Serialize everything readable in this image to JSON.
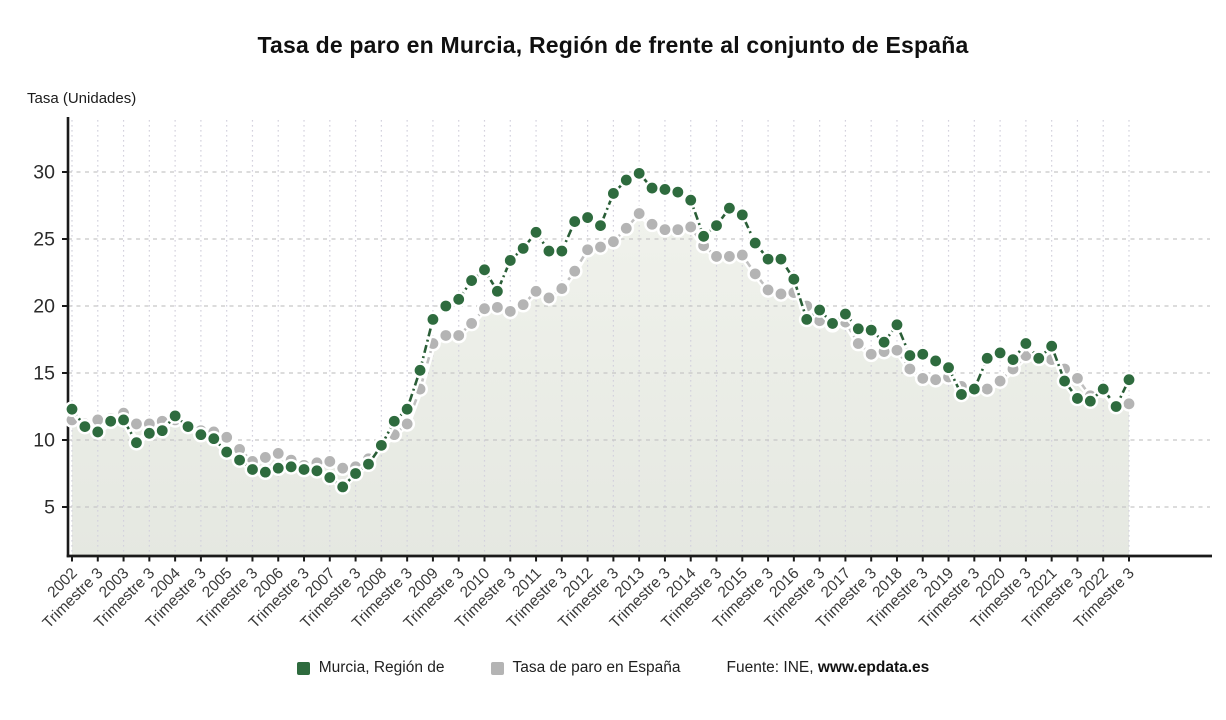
{
  "page": {
    "title": "Tasa de paro en Murcia, Región de frente al conjunto de España"
  },
  "chart_data": {
    "type": "line",
    "title": "Tasa de paro en Murcia, Región de frente al conjunto de España",
    "ylabel": "Tasa (Unidades)",
    "xlabel": "",
    "grid": true,
    "legend_position": "bottom",
    "ylim": [
      0,
      33.9
    ],
    "y_ticks": [
      5,
      10,
      15,
      20,
      25,
      30
    ],
    "x_tick_step": 2,
    "x_tick_labels": [
      "2002",
      "Trimestre 3",
      "2003",
      "Trimestre 3",
      "2004",
      "Trimestre 3",
      "2005",
      "Trimestre 3",
      "2006",
      "Trimestre 3",
      "2007",
      "Trimestre 3",
      "2008",
      "Trimestre 3",
      "2009",
      "Trimestre 3",
      "2010",
      "Trimestre 3",
      "2011",
      "Trimestre 3",
      "2012",
      "Trimestre 3",
      "2013",
      "Trimestre 3",
      "2014",
      "Trimestre 3",
      "2015",
      "Trimestre 3",
      "2016",
      "Trimestre 3",
      "2017",
      "Trimestre 3",
      "2018",
      "Trimestre 3",
      "2019",
      "Trimestre 3",
      "2020",
      "Trimestre 3",
      "2021",
      "Trimestre 3",
      "2022",
      "Trimestre 3"
    ],
    "series": [
      {
        "name": "Tasa de paro en España",
        "color": "#b4b4b4",
        "line_color": "#c0c0c0",
        "dash": "6.5 4.5",
        "area": true,
        "values": [
          11.5,
          11.2,
          11.5,
          11.6,
          12.0,
          11.2,
          11.2,
          11.4,
          11.5,
          11.1,
          10.7,
          10.6,
          10.2,
          9.3,
          8.4,
          8.7,
          9.0,
          8.5,
          8.1,
          8.3,
          8.4,
          7.9,
          8.0,
          8.6,
          9.6,
          10.4,
          11.2,
          13.8,
          17.2,
          17.8,
          17.8,
          18.7,
          19.8,
          19.9,
          19.6,
          20.1,
          21.1,
          20.6,
          21.3,
          22.6,
          24.2,
          24.4,
          24.8,
          25.8,
          26.9,
          26.1,
          25.7,
          25.7,
          25.9,
          24.5,
          23.7,
          23.7,
          23.8,
          22.4,
          21.2,
          20.9,
          21.0,
          20.0,
          18.9,
          18.6,
          18.8,
          17.2,
          16.4,
          16.6,
          16.7,
          15.3,
          14.6,
          14.5,
          14.7,
          14.0,
          13.9,
          13.8,
          14.4,
          15.3,
          16.3,
          16.1,
          16.0,
          15.3,
          14.6,
          13.3,
          13.7,
          12.5,
          12.7
        ]
      },
      {
        "name": "Murcia, Región de",
        "color": "#2e6b3e",
        "line_color": "#2a5e37",
        "dash": "8 3.5 2 3.5",
        "area": false,
        "values": [
          12.3,
          11.0,
          10.6,
          11.4,
          11.5,
          9.8,
          10.5,
          10.7,
          11.8,
          11.0,
          10.4,
          10.1,
          9.1,
          8.5,
          7.8,
          7.6,
          7.9,
          8.0,
          7.8,
          7.7,
          7.2,
          6.5,
          7.5,
          8.2,
          9.6,
          11.4,
          12.3,
          15.2,
          19.0,
          20.0,
          20.5,
          21.9,
          22.7,
          21.1,
          23.4,
          24.3,
          25.5,
          24.1,
          24.1,
          26.3,
          26.6,
          26.0,
          28.4,
          29.4,
          29.9,
          28.8,
          28.7,
          28.5,
          27.9,
          25.2,
          26.0,
          27.3,
          26.8,
          24.7,
          23.5,
          23.5,
          22.0,
          19.0,
          19.7,
          18.7,
          19.4,
          18.3,
          18.2,
          17.3,
          18.6,
          16.3,
          16.4,
          15.9,
          15.4,
          13.4,
          13.8,
          16.1,
          16.5,
          16.0,
          17.2,
          16.1,
          17.0,
          14.4,
          13.1,
          12.9,
          13.8,
          12.5,
          14.5
        ]
      }
    ]
  },
  "footer": {
    "source_prefix": "Fuente: INE, ",
    "source_link": "www.epdata.es"
  }
}
